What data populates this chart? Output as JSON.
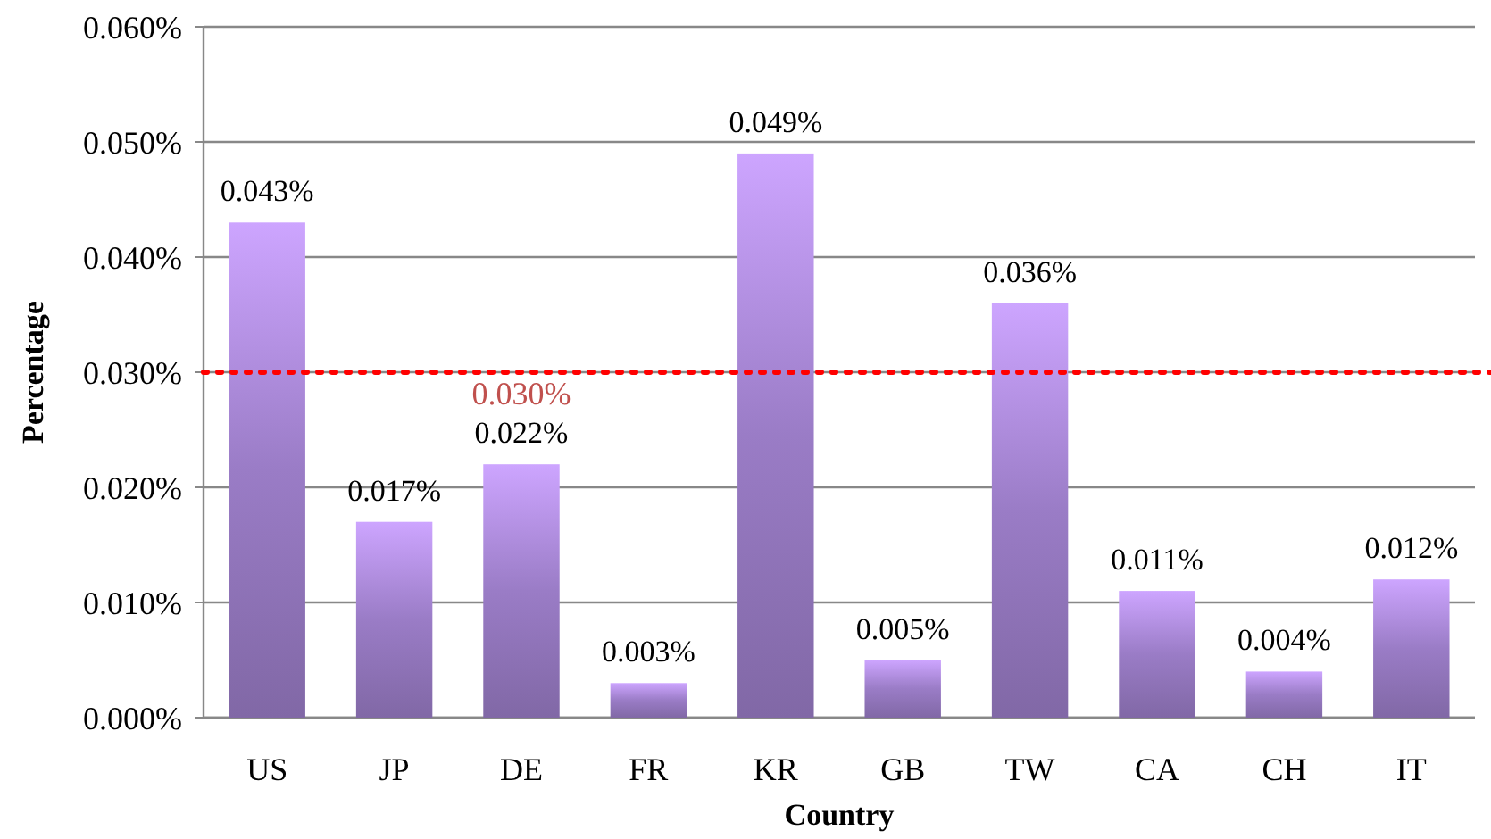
{
  "chart_data": {
    "type": "bar",
    "xlabel": "Country",
    "ylabel": "Percentage",
    "categories": [
      "US",
      "JP",
      "DE",
      "FR",
      "KR",
      "GB",
      "TW",
      "CA",
      "CH",
      "IT"
    ],
    "values": [
      0.043,
      0.017,
      0.022,
      0.003,
      0.049,
      0.005,
      0.036,
      0.011,
      0.004,
      0.012
    ],
    "value_labels": [
      "0.043%",
      "0.017%",
      "0.022%",
      "0.003%",
      "0.049%",
      "0.005%",
      "0.036%",
      "0.011%",
      "0.004%",
      "0.012%"
    ],
    "color": "#9a7cc6",
    "ylim": [
      0,
      0.06
    ],
    "yticks": [
      {
        "value": 0,
        "label": "0.000%"
      },
      {
        "value": 0.01,
        "label": "0.010%"
      },
      {
        "value": 0.02,
        "label": "0.020%"
      },
      {
        "value": 0.03,
        "label": "0.030%"
      },
      {
        "value": 0.04,
        "label": "0.040%"
      },
      {
        "value": 0.05,
        "label": "0.050%"
      },
      {
        "value": 0.06,
        "label": "0.060%"
      }
    ],
    "grid": "y",
    "ref_lines": [
      {
        "axis": "y",
        "value": 0.03,
        "label": "0.030%",
        "color": "#ff0000",
        "line_style": "dotted"
      }
    ]
  }
}
